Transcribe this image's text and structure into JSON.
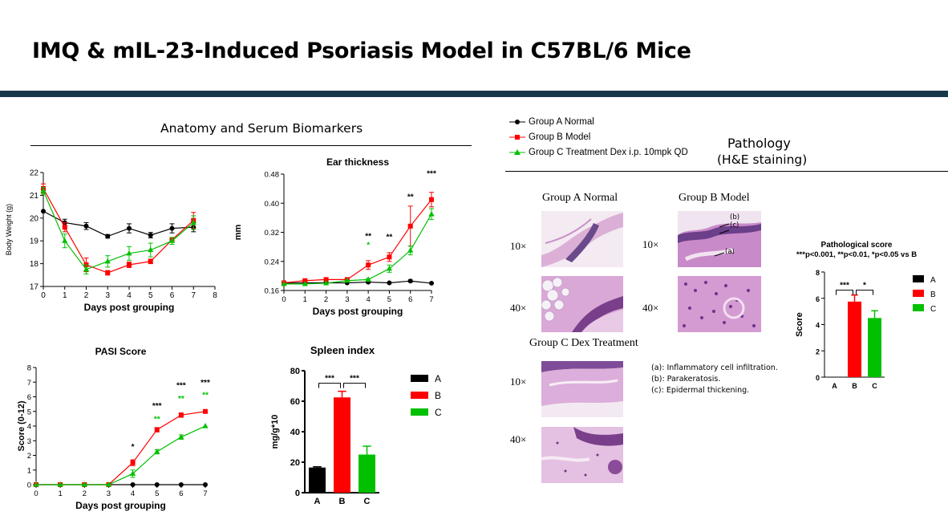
{
  "page": {
    "title": "IMQ & mIL-23-Induced Psoriasis Model in C57BL/6 Mice"
  },
  "left_section": {
    "title": "Anatomy and Serum Biomarkers"
  },
  "right_section": {
    "title": "Pathology",
    "subtitle": "(H&E staining)"
  },
  "top_legend": [
    {
      "label": "Group A Normal",
      "color": "#000000",
      "marker": "circle"
    },
    {
      "label": "Group B Model",
      "color": "#ff0000",
      "marker": "square"
    },
    {
      "label": "Group C Treatment Dex i.p. 10mpk QD",
      "color": "#00c000",
      "marker": "triangle"
    }
  ],
  "colors": {
    "A": "#000000",
    "B": "#ff0000",
    "C": "#00c000",
    "header_bar": "#15384a"
  },
  "pathology": {
    "group_a_label": "Group A Normal",
    "group_b_label": "Group B Model",
    "group_c_label": "Group C Dex Treatment",
    "mag_10": "10×",
    "mag_40": "40×",
    "arrow_a": "(a)",
    "arrow_b": "(b)",
    "arrow_c": "(c)",
    "notes": [
      "(a): Inflammatory cell infiltration.",
      "(b): Parakeratosis.",
      "(c): Epidermal thickening."
    ]
  },
  "chart_data": [
    {
      "id": "body_weight",
      "type": "line",
      "title": "",
      "xlabel": "Days post grouping",
      "ylabel": "Body Weight (g)",
      "xlim": [
        0,
        8
      ],
      "ylim": [
        17,
        22
      ],
      "xticks": [
        0,
        1,
        2,
        3,
        4,
        5,
        6,
        7,
        8
      ],
      "yticks": [
        17,
        18,
        19,
        20,
        21,
        22
      ],
      "series": [
        {
          "name": "A",
          "x": [
            0,
            1,
            2,
            3,
            4,
            5,
            6,
            7
          ],
          "values": [
            20.3,
            19.8,
            19.65,
            19.2,
            19.55,
            19.25,
            19.55,
            19.6
          ],
          "err": [
            0,
            0.15,
            0.15,
            0.08,
            0.2,
            0.12,
            0.2,
            0.2
          ]
        },
        {
          "name": "B",
          "x": [
            0,
            1,
            2,
            3,
            4,
            5,
            6,
            7
          ],
          "values": [
            21.3,
            19.6,
            17.95,
            17.6,
            17.95,
            18.1,
            19.05,
            19.9
          ],
          "err": [
            0.2,
            0.2,
            0.3,
            0.1,
            0.12,
            0.1,
            0.1,
            0.35
          ]
        },
        {
          "name": "C",
          "x": [
            0,
            1,
            2,
            3,
            4,
            5,
            6,
            7
          ],
          "values": [
            21.2,
            19.0,
            17.75,
            18.1,
            18.45,
            18.6,
            19.0,
            19.8
          ],
          "err": [
            0.15,
            0.3,
            0.2,
            0.25,
            0.3,
            0.3,
            0.15,
            0.3
          ]
        }
      ]
    },
    {
      "id": "ear_thickness",
      "type": "line",
      "title": "Ear thickness",
      "xlabel": "Days post grouping",
      "ylabel": "mm",
      "xlim": [
        0,
        7
      ],
      "ylim": [
        0.16,
        0.48
      ],
      "xticks": [
        0,
        1,
        2,
        3,
        4,
        5,
        6,
        7
      ],
      "yticks": [
        "0.16",
        "0.24",
        "0.32",
        "0.40",
        "0.48"
      ],
      "series": [
        {
          "name": "A",
          "x": [
            0,
            1,
            2,
            3,
            4,
            5,
            6,
            7
          ],
          "values": [
            0.18,
            0.181,
            0.181,
            0.181,
            0.183,
            0.181,
            0.186,
            0.18
          ],
          "err": [
            0,
            0,
            0,
            0,
            0.002,
            0,
            0.003,
            0
          ]
        },
        {
          "name": "B",
          "x": [
            0,
            1,
            2,
            3,
            4,
            5,
            6,
            7
          ],
          "values": [
            0.181,
            0.187,
            0.19,
            0.19,
            0.23,
            0.252,
            0.337,
            0.41
          ],
          "err": [
            0,
            0.003,
            0.003,
            0.003,
            0.012,
            0.012,
            0.055,
            0.02
          ]
        },
        {
          "name": "C",
          "x": [
            0,
            1,
            2,
            3,
            4,
            5,
            6,
            7
          ],
          "values": [
            0.178,
            0.178,
            0.18,
            0.187,
            0.19,
            0.22,
            0.27,
            0.37
          ],
          "err": [
            0,
            0,
            0,
            0,
            0.003,
            0.01,
            0.012,
            0.015
          ]
        }
      ],
      "annotations": [
        {
          "x": 4,
          "text": "**",
          "color": "#000000",
          "value": 0.302
        },
        {
          "x": 4,
          "text": "*",
          "color": "#00c000",
          "value": 0.278
        },
        {
          "x": 5,
          "text": "**",
          "color": "#000000",
          "value": 0.3
        },
        {
          "x": 6,
          "text": "**",
          "color": "#000000",
          "value": 0.41
        },
        {
          "x": 7,
          "text": "***",
          "color": "#000000",
          "value": 0.475
        }
      ]
    },
    {
      "id": "pasi",
      "type": "line",
      "title": "PASI Score",
      "xlabel": "Days post grouping",
      "ylabel": "Score (0-12)",
      "xlim": [
        0,
        7
      ],
      "ylim": [
        0,
        8
      ],
      "xticks": [
        0,
        1,
        2,
        3,
        4,
        5,
        6,
        7
      ],
      "yticks": [
        0,
        1,
        2,
        3,
        4,
        5,
        6,
        7,
        8
      ],
      "series": [
        {
          "name": "A",
          "x": [
            0,
            1,
            2,
            3,
            4,
            5,
            6,
            7
          ],
          "values": [
            0,
            0,
            0,
            0,
            0,
            0,
            0,
            0
          ],
          "err": [
            0,
            0,
            0,
            0,
            0,
            0,
            0,
            0
          ]
        },
        {
          "name": "B",
          "x": [
            0,
            1,
            2,
            3,
            4,
            5,
            6,
            7
          ],
          "values": [
            0,
            0,
            0,
            0,
            1.5,
            3.75,
            4.75,
            5.0
          ],
          "err": [
            0,
            0,
            0,
            0,
            0.2,
            0.15,
            0.15,
            0
          ]
        },
        {
          "name": "C",
          "x": [
            0,
            1,
            2,
            3,
            4,
            5,
            6,
            7
          ],
          "values": [
            0,
            0,
            0,
            0,
            0.75,
            2.25,
            3.25,
            4.0
          ],
          "err": [
            0,
            0,
            0,
            0,
            0.25,
            0.15,
            0.15,
            0
          ]
        }
      ],
      "annotations": [
        {
          "x": 4,
          "text": "*",
          "color": "#000000",
          "value": 2.4
        },
        {
          "x": 5,
          "text": "***",
          "color": "#000000",
          "value": 5.2
        },
        {
          "x": 5,
          "text": "**",
          "color": "#00c000",
          "value": 4.3
        },
        {
          "x": 6,
          "text": "***",
          "color": "#000000",
          "value": 6.6
        },
        {
          "x": 6,
          "text": "**",
          "color": "#00c000",
          "value": 5.7
        },
        {
          "x": 7,
          "text": "***",
          "color": "#000000",
          "value": 6.8
        },
        {
          "x": 7,
          "text": "**",
          "color": "#00c000",
          "value": 5.95
        }
      ]
    },
    {
      "id": "spleen_index",
      "type": "bar",
      "title": "Spleen index",
      "ylabel": "mg/g*10",
      "categories": [
        "A",
        "B",
        "C"
      ],
      "values": [
        16.5,
        62.5,
        25
      ],
      "err": [
        0.5,
        4,
        5.5
      ],
      "ylim": [
        0,
        80
      ],
      "yticks": [
        0,
        20,
        40,
        60,
        80
      ],
      "legend": [
        "A",
        "B",
        "C"
      ],
      "sig": [
        {
          "from": "A",
          "to": "B",
          "text": "***"
        },
        {
          "from": "B",
          "to": "C",
          "text": "***"
        }
      ]
    },
    {
      "id": "pathological_score",
      "type": "bar",
      "title": "Pathological score",
      "subtitle": "***p<0.001, **p<0.01, *p<0.05 vs B",
      "ylabel": "Score",
      "categories": [
        "A",
        "B",
        "C"
      ],
      "values": [
        0,
        5.75,
        4.5
      ],
      "err": [
        0,
        0.5,
        0.55
      ],
      "ylim": [
        0,
        8
      ],
      "yticks": [
        0,
        2,
        4,
        6,
        8
      ],
      "legend": [
        "A",
        "B",
        "C"
      ],
      "sig": [
        {
          "from": "A",
          "to": "B",
          "text": "***"
        },
        {
          "from": "B",
          "to": "C",
          "text": "*"
        }
      ]
    }
  ]
}
